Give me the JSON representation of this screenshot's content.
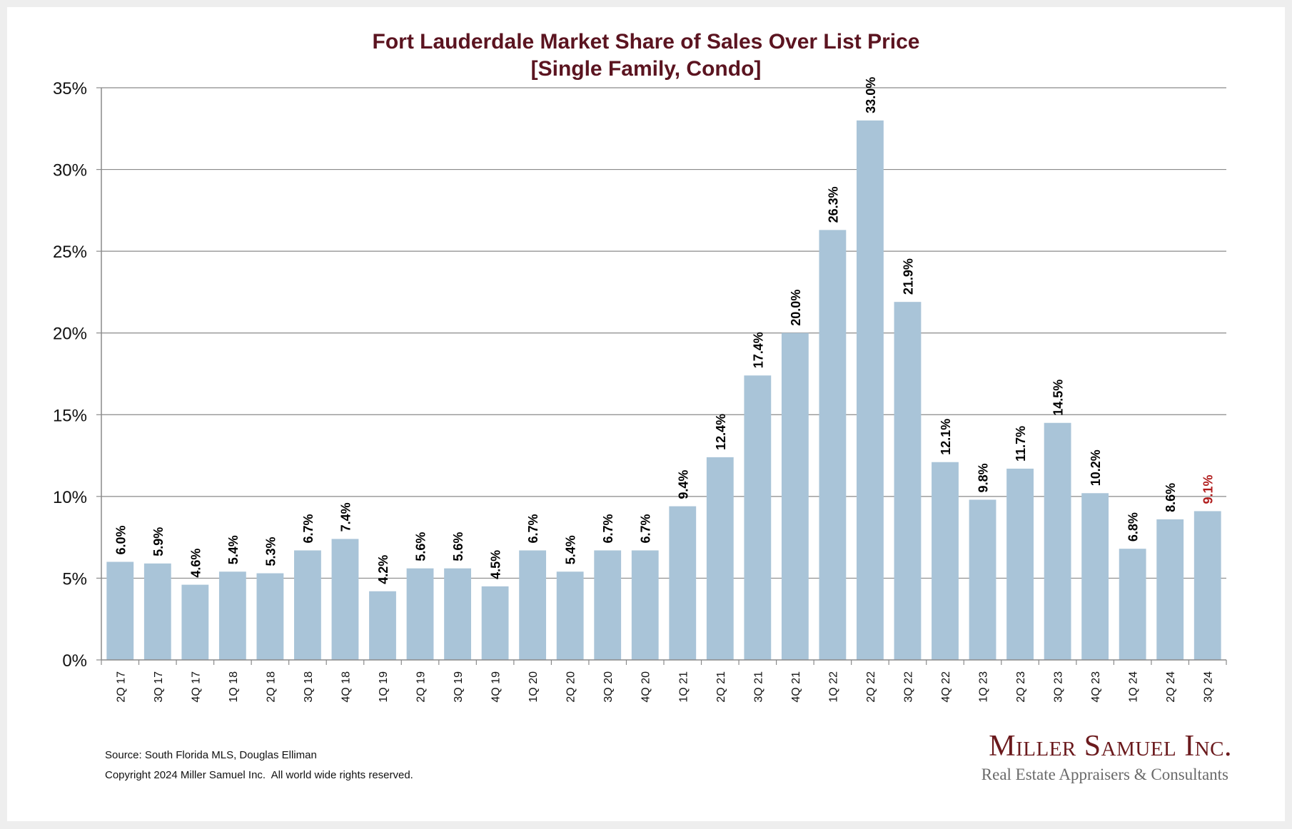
{
  "chart_data": {
    "type": "bar",
    "title": "Fort Lauderdale Market Share of Sales Over List Price",
    "subtitle": "[Single Family, Condo]",
    "xlabel": "",
    "ylabel": "",
    "ylim": [
      0,
      35
    ],
    "yticks": [
      0,
      5,
      10,
      15,
      20,
      25,
      30,
      35
    ],
    "ytick_labels": [
      "0%",
      "5%",
      "10%",
      "15%",
      "20%",
      "25%",
      "30%",
      "35%"
    ],
    "grid": true,
    "legend": "none",
    "bar_color": "#a9c4d8",
    "label_color": "#000000",
    "highlight_label_color": "#b01c1c",
    "highlight_index": 29,
    "categories": [
      "2Q 17",
      "3Q 17",
      "4Q 17",
      "1Q 18",
      "2Q 18",
      "3Q 18",
      "4Q 18",
      "1Q 19",
      "2Q 19",
      "3Q 19",
      "4Q 19",
      "1Q 20",
      "2Q 20",
      "3Q 20",
      "4Q 20",
      "1Q 21",
      "2Q 21",
      "3Q 21",
      "4Q 21",
      "1Q 22",
      "2Q 22",
      "3Q 22",
      "4Q 22",
      "1Q 23",
      "2Q 23",
      "3Q 23",
      "4Q 23",
      "1Q 24",
      "2Q 24",
      "3Q 24"
    ],
    "values": [
      6.0,
      5.9,
      4.6,
      5.4,
      5.3,
      6.7,
      7.4,
      4.2,
      5.6,
      5.6,
      4.5,
      6.7,
      5.4,
      6.7,
      6.7,
      9.4,
      12.4,
      17.4,
      20.0,
      26.3,
      33.0,
      21.9,
      12.1,
      9.8,
      11.7,
      14.5,
      10.2,
      6.8,
      8.6,
      9.1
    ],
    "data_labels": [
      "6.0%",
      "5.9%",
      "4.6%",
      "5.4%",
      "5.3%",
      "6.7%",
      "7.4%",
      "4.2%",
      "5.6%",
      "5.6%",
      "4.5%",
      "6.7%",
      "5.4%",
      "6.7%",
      "6.7%",
      "9.4%",
      "12.4%",
      "17.4%",
      "20.0%",
      "26.3%",
      "33.0%",
      "21.9%",
      "12.1%",
      "9.8%",
      "11.7%",
      "14.5%",
      "10.2%",
      "6.8%",
      "8.6%",
      "9.1%"
    ]
  },
  "footer": {
    "source": "Source: South Florida MLS, Douglas Elliman",
    "copyright": "Copyright 2024 Miller Samuel Inc.  All world wide rights reserved."
  },
  "logo": {
    "name": "Miller Samuel Inc.",
    "tagline": "Real Estate Appraisers & Consultants"
  },
  "colors": {
    "title": "#5b1420",
    "gridline": "#8a8a8a",
    "logo_main": "#6b1a1d",
    "logo_sub": "#6a6a6a"
  }
}
